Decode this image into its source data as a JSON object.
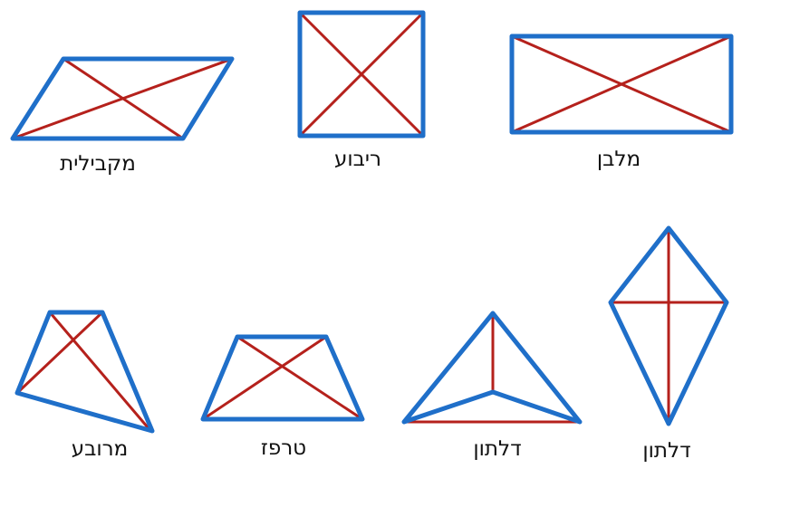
{
  "colors": {
    "outline": "#1f6fc9",
    "diagonal": "#b5211c",
    "text": "#111111"
  },
  "shapes": [
    {
      "id": "parallelogram",
      "label": "מקבילית"
    },
    {
      "id": "square",
      "label": "ריבוע"
    },
    {
      "id": "rectangle",
      "label": "מלבן"
    },
    {
      "id": "quadrilateral",
      "label": "מרובע"
    },
    {
      "id": "trapezoid",
      "label": "טרפז"
    },
    {
      "id": "concave-kite",
      "label": "דלתון"
    },
    {
      "id": "kite",
      "label": "דלתון"
    }
  ]
}
